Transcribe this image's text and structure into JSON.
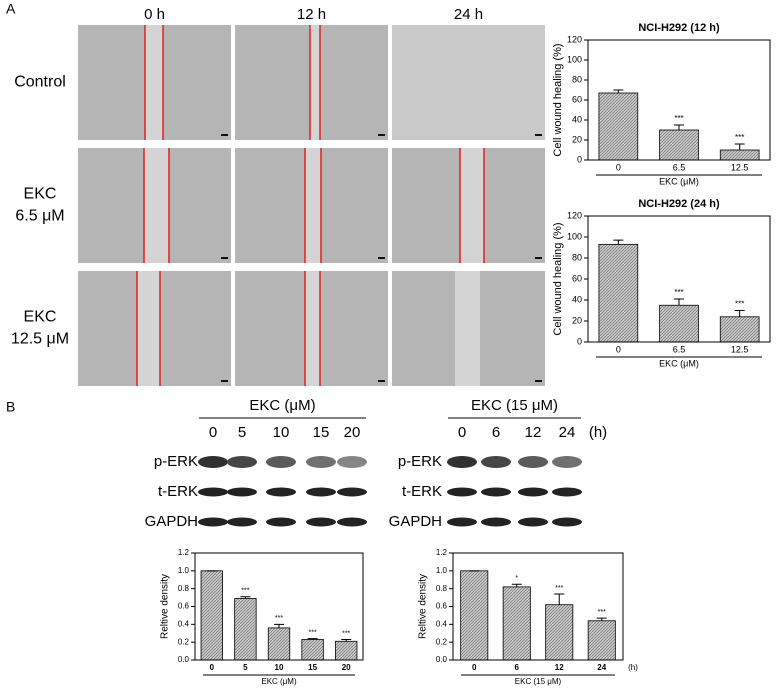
{
  "panel_labels": [
    "A",
    "B"
  ],
  "time_labels": [
    "0 h",
    "12 h",
    "24 h"
  ],
  "row_labels": [
    [
      "Control"
    ],
    [
      "EKC",
      "6.5 μM"
    ],
    [
      "EKC",
      "12.5 μM"
    ]
  ],
  "blot_left": {
    "header": "EKC (μM)",
    "lanes": [
      "0",
      "5",
      "10",
      "15",
      "20"
    ],
    "proteins": [
      "p-ERK",
      "t-ERK",
      "GAPDH"
    ]
  },
  "blot_right": {
    "header": "EKC (15 μM)",
    "lanes": [
      "0",
      "6",
      "12",
      "24"
    ],
    "unit": "(h)",
    "proteins": [
      "p-ERK",
      "t-ERK",
      "GAPDH"
    ]
  },
  "chart_data": [
    {
      "type": "bar",
      "title": "NCI-H292 (12 h)",
      "ylabel": "Cell wound healing (%)",
      "xlabel": "EKC (μM)",
      "categories": [
        "0",
        "6.5",
        "12.5"
      ],
      "values": [
        67,
        30,
        10
      ],
      "errors": [
        3,
        5,
        6
      ],
      "annotations": [
        null,
        "***",
        "***"
      ],
      "color": "#b4b4b4",
      "ylim": [
        0,
        120
      ],
      "yticks": [
        0,
        20,
        40,
        60,
        80,
        100,
        120
      ]
    },
    {
      "type": "bar",
      "title": "NCI-H292 (24 h)",
      "ylabel": "Cell wound healing (%)",
      "xlabel": "EKC (μM)",
      "categories": [
        "0",
        "6.5",
        "12.5"
      ],
      "values": [
        93,
        35,
        24
      ],
      "errors": [
        4,
        6,
        6
      ],
      "annotations": [
        null,
        "***",
        "***"
      ],
      "color": "#b4b4b4",
      "ylim": [
        0,
        120
      ],
      "yticks": [
        0,
        20,
        40,
        60,
        80,
        100,
        120
      ]
    },
    {
      "type": "bar",
      "ylabel": "Reltive density",
      "xlabel": "EKC (μM)",
      "categories": [
        "0",
        "5",
        "10",
        "15",
        "20"
      ],
      "values": [
        1.0,
        0.69,
        0.36,
        0.23,
        0.21
      ],
      "errors": [
        0,
        0.02,
        0.04,
        0.01,
        0.02
      ],
      "annotations": [
        null,
        "***",
        "***",
        "***",
        "***"
      ],
      "color": "#b4b4b4",
      "ylim": [
        0,
        1.2
      ],
      "yticks": [
        {
          "value": 0,
          "label": "0.0"
        },
        0.2,
        0.4,
        0.6,
        0.8,
        {
          "value": 1,
          "label": "1.0"
        },
        1.2
      ]
    },
    {
      "type": "bar",
      "ylabel": "Reltive density",
      "xlabel": "EKC (15 μM)",
      "x_unit": "(h)",
      "categories": [
        "0",
        "6",
        "12",
        "24"
      ],
      "values": [
        1.0,
        0.82,
        0.62,
        0.44
      ],
      "errors": [
        0,
        0.03,
        0.12,
        0.03
      ],
      "annotations": [
        null,
        "*",
        "***",
        "***"
      ],
      "color": "#b4b4b4",
      "ylim": [
        0,
        1.2
      ],
      "yticks": [
        {
          "value": 0,
          "label": "0.0"
        },
        0.2,
        0.4,
        0.6,
        0.8,
        {
          "value": 1,
          "label": "1.0"
        },
        1.2
      ]
    }
  ]
}
